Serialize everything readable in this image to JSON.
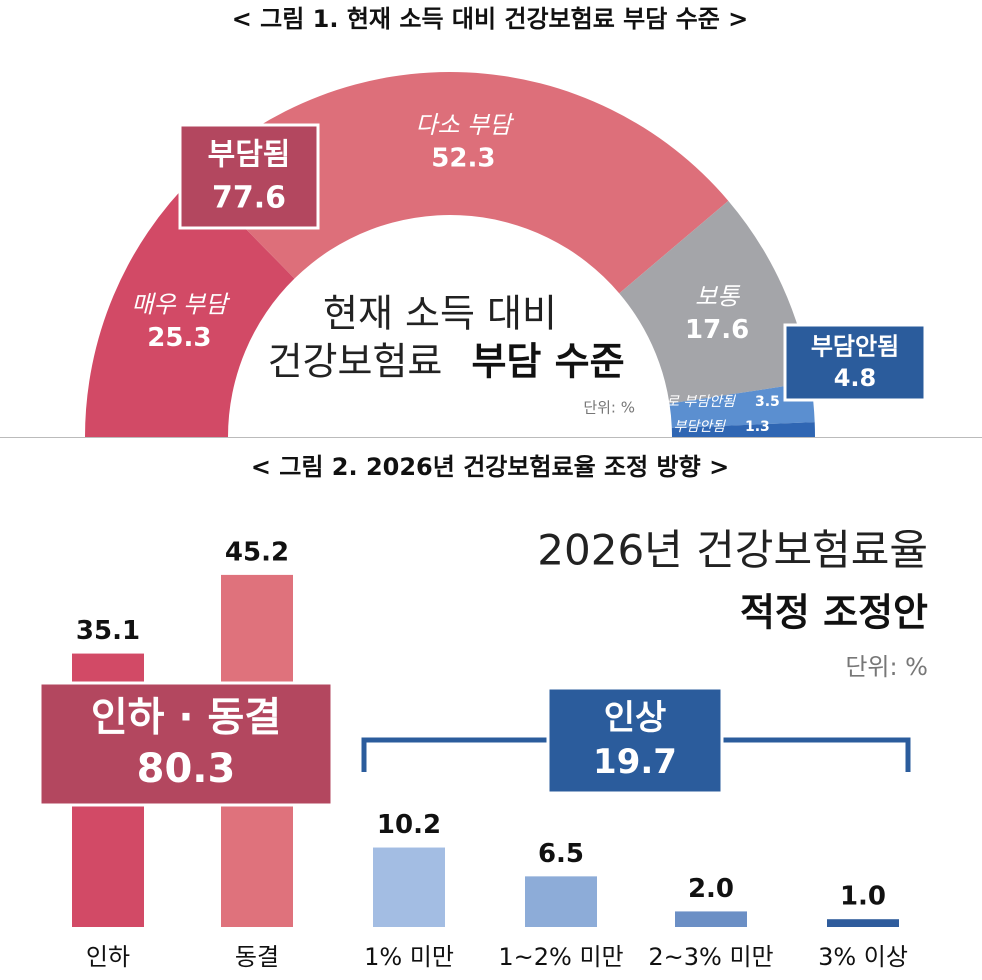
{
  "chart_data": [
    {
      "type": "donut",
      "caption": "< 그림 1. 현재 소득 대비 건강보험료 부담 수준 >",
      "center_text": [
        "현재 소득 대비",
        "건강보험료",
        "부담 수준"
      ],
      "unit": "단위: %",
      "categories": [
        "매우 부담",
        "다소 부담",
        "보통",
        "별로 부담안됨",
        "전혀 부담안됨"
      ],
      "values": [
        25.3,
        52.3,
        17.6,
        3.5,
        1.3
      ],
      "colors": [
        "#d24a66",
        "#dd6f7a",
        "#a4a5a9",
        "#5b8fd0",
        "#2f66b3"
      ],
      "groups": [
        {
          "name": "부담됨",
          "value": 77.6,
          "color": "#b3475f"
        },
        {
          "name": "부담안됨",
          "value": 4.8,
          "color": "#2b5c9c"
        }
      ]
    },
    {
      "type": "bar",
      "caption": "< 그림 2. 2026년 건강보험료율 조정 방향 >",
      "title": [
        "2026년 건강보험료율",
        "적정 조정안"
      ],
      "unit": "단위: %",
      "categories": [
        "인하",
        "동결",
        "1% 미만",
        "1~2% 미만",
        "2~3% 미만",
        "3% 이상"
      ],
      "values": [
        35.1,
        45.2,
        10.2,
        6.5,
        2.0,
        1.0
      ],
      "value_labels": [
        "35.1",
        "45.2",
        "10.2",
        "6.5",
        "2.0",
        "1.0"
      ],
      "colors": [
        "#d24a66",
        "#df727c",
        "#a3bde3",
        "#8dacd8",
        "#6b8fc5",
        "#2f5c9c"
      ],
      "groups": [
        {
          "name": "인하 · 동결",
          "value": 80.3,
          "color": "#b3475f"
        },
        {
          "name": "인상",
          "value": 19.7,
          "color": "#2b5c9c"
        }
      ]
    }
  ]
}
